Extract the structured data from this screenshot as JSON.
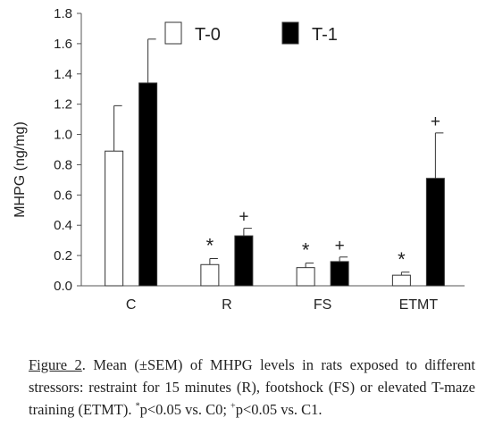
{
  "chart_data": {
    "type": "bar",
    "ylabel": "MHPG (ng/mg)",
    "ylim": [
      0,
      1.8
    ],
    "yticks": [
      "0.0",
      "0.2",
      "0.4",
      "0.6",
      "0.8",
      "1.0",
      "1.2",
      "1.4",
      "1.6",
      "1.8"
    ],
    "categories": [
      "C",
      "R",
      "FS",
      "ETMT"
    ],
    "series": [
      {
        "name": "T-0",
        "color": "#ffffff",
        "values": [
          0.89,
          0.14,
          0.12,
          0.07
        ],
        "sem": [
          0.3,
          0.04,
          0.03,
          0.02
        ],
        "marks": [
          "",
          "*",
          "*",
          "*"
        ]
      },
      {
        "name": "T-1",
        "color": "#000000",
        "values": [
          1.34,
          0.33,
          0.16,
          0.71
        ],
        "sem": [
          0.29,
          0.05,
          0.03,
          0.3
        ],
        "marks": [
          "",
          "+",
          "+",
          "+"
        ]
      }
    ],
    "legend_position": "top",
    "grid": false
  },
  "caption": {
    "label": "Figure 2",
    "text": ". Mean (±SEM) of MHPG levels in rats exposed to different stressors: restraint for 15 minutes (R), footshock (FS) or elevated T-maze training (ETMT). ",
    "sig_star": "*",
    "sig_star_text": "p<0.05 vs. C0; ",
    "sig_plus": "+",
    "sig_plus_text": "p<0.05 vs. C1."
  }
}
